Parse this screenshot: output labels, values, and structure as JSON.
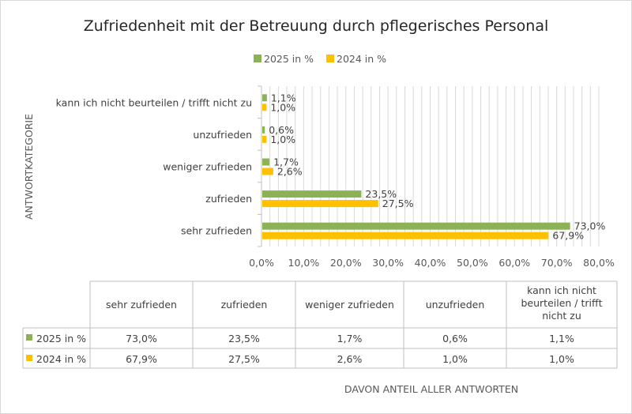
{
  "chart_data": {
    "type": "bar",
    "orientation": "horizontal",
    "title": "Zufriedenheit mit der Betreuung durch pflegerisches Personal",
    "xlabel": "DAVON ANTEIL ALLER ANTWORTEN",
    "ylabel": "ANTWORTKATEGORIE",
    "xlim": [
      0,
      80
    ],
    "x_ticks": [
      "0,0%",
      "10,0%",
      "20,0%",
      "30,0%",
      "40,0%",
      "50,0%",
      "60,0%",
      "70,0%",
      "80,0%"
    ],
    "grid": true,
    "legend_position": "top",
    "categories": [
      "sehr zufrieden",
      "zufrieden",
      "weniger zufrieden",
      "unzufrieden",
      "kann ich nicht beurteilen / trifft nicht zu"
    ],
    "table_headers": [
      "sehr zufrieden",
      "zufrieden",
      "weniger zufrieden",
      "unzufrieden",
      "kann ich nicht beurteilen / trifft nicht zu"
    ],
    "series": [
      {
        "name": "2025 in %",
        "color": "#8db255",
        "values": [
          73.0,
          23.5,
          1.7,
          0.6,
          1.1
        ],
        "labels": [
          "73,0%",
          "23,5%",
          "1,7%",
          "0,6%",
          "1,1%"
        ]
      },
      {
        "name": "2024 in %",
        "color": "#ffc000",
        "values": [
          67.9,
          27.5,
          2.6,
          1.0,
          1.0
        ],
        "labels": [
          "67,9%",
          "27,5%",
          "2,6%",
          "1,0%",
          "1,0%"
        ]
      }
    ]
  }
}
